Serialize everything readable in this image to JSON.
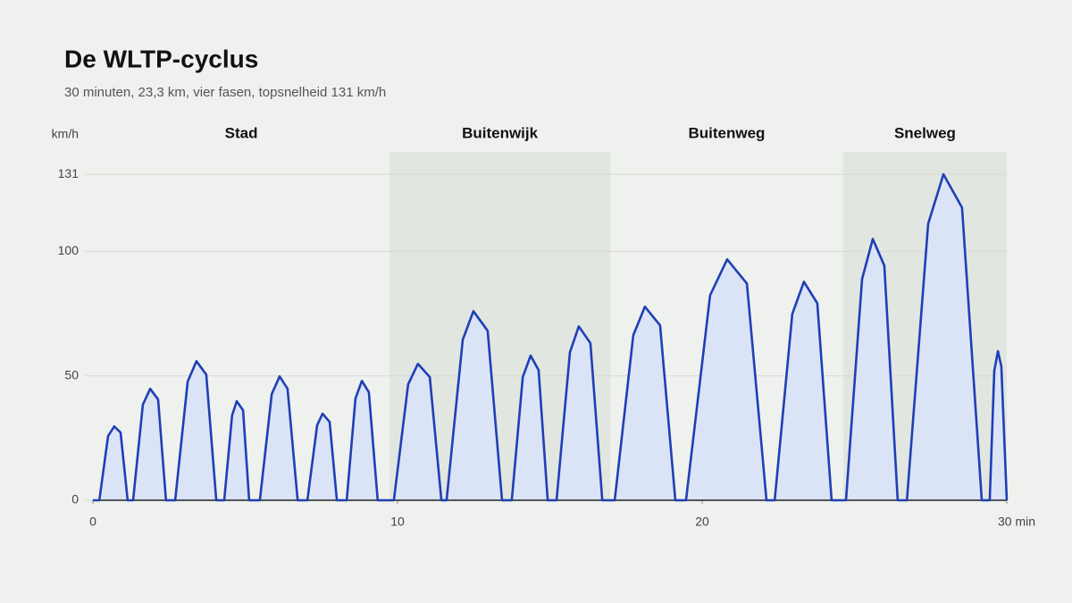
{
  "chart_data": {
    "type": "area",
    "title": "De WLTP-cyclus",
    "subtitle": "30 minuten, 23,3 km, vier fasen, topsnelheid 131 km/h",
    "y_label": "km/h",
    "color": "#1f3fb5",
    "fill_color": "#dbe3f7",
    "band_color": "#e1e6e0",
    "grid": true,
    "xlim": [
      0,
      30
    ],
    "ylim": [
      0,
      140
    ],
    "xticks": [
      0,
      10,
      20,
      {
        "value": 30,
        "label": "30 min"
      }
    ],
    "yticks": [
      0,
      50,
      100,
      131
    ],
    "phases": [
      {
        "name": "Stad",
        "start": 0,
        "end": 9.74,
        "shaded": false
      },
      {
        "name": "Buitenwijk",
        "start": 9.74,
        "end": 16.98,
        "shaded": true
      },
      {
        "name": "Buitenweg",
        "start": 16.98,
        "end": 24.63,
        "shaded": false
      },
      {
        "name": "Snelweg",
        "start": 24.63,
        "end": 30,
        "shaded": true
      }
    ],
    "x": [
      0,
      0.21,
      0.5,
      0.7,
      0.91,
      1.14,
      1.32,
      1.64,
      1.88,
      2.14,
      2.4,
      2.7,
      3.11,
      3.4,
      3.72,
      4.05,
      4.31,
      4.57,
      4.72,
      4.93,
      5.13,
      5.48,
      5.87,
      6.13,
      6.39,
      6.72,
      7.04,
      7.36,
      7.54,
      7.77,
      8.01,
      8.33,
      8.62,
      8.83,
      9.06,
      9.35,
      9.88,
      10.35,
      10.67,
      11.06,
      11.44,
      11.61,
      12.14,
      12.49,
      12.96,
      13.43,
      13.75,
      14.11,
      14.37,
      14.63,
      14.93,
      15.22,
      15.66,
      15.95,
      16.33,
      16.72,
      17.13,
      17.74,
      18.12,
      18.62,
      19.12,
      19.47,
      20.26,
      20.82,
      21.47,
      22.11,
      22.38,
      22.96,
      23.34,
      23.78,
      24.25,
      24.72,
      25.25,
      25.6,
      25.98,
      26.42,
      26.72,
      27.42,
      27.92,
      28.53,
      29.18,
      29.44,
      29.59,
      29.71,
      29.82,
      30
    ],
    "values": [
      0,
      0,
      25.8,
      29.7,
      27.2,
      0,
      0,
      38.4,
      44.8,
      40.5,
      0,
      0,
      47.7,
      55.9,
      50.5,
      0,
      0,
      34.1,
      39.8,
      36.2,
      0,
      0,
      42.7,
      49.8,
      44.8,
      0,
      0,
      30.1,
      34.8,
      31.5,
      0,
      0,
      40.9,
      48,
      43.4,
      0,
      0,
      46.6,
      54.8,
      49.5,
      0,
      0,
      64.5,
      76,
      68.1,
      0,
      0,
      49.5,
      58.1,
      52.3,
      0,
      0,
      59.5,
      69.9,
      63.1,
      0,
      0,
      66.3,
      77.8,
      70.3,
      0,
      0,
      82.4,
      96.8,
      87.1,
      0,
      0,
      74.9,
      87.8,
      79.2,
      0,
      0,
      88.9,
      105,
      94.3,
      0,
      0,
      111.1,
      131,
      117.6,
      0,
      0,
      52,
      59.9,
      53.8,
      0
    ]
  }
}
